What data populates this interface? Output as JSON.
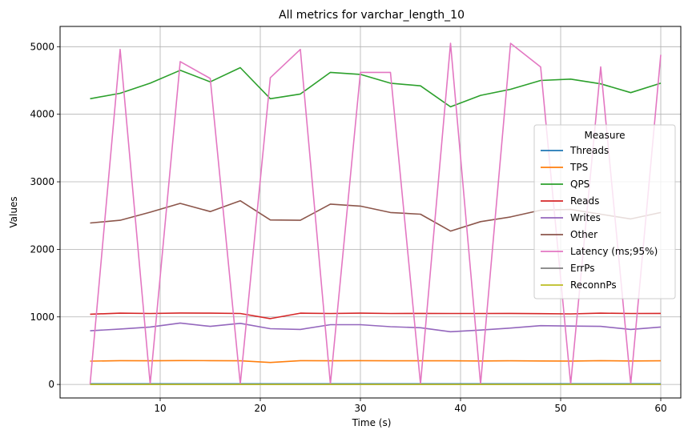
{
  "chart_data": {
    "type": "line",
    "title": "All metrics for varchar_length_10",
    "xlabel": "Time (s)",
    "ylabel": "Values",
    "xlim": [
      0,
      62
    ],
    "ylim": [
      -200,
      5300
    ],
    "xticks": [
      10,
      20,
      30,
      40,
      50,
      60
    ],
    "yticks": [
      0,
      1000,
      2000,
      3000,
      4000,
      5000
    ],
    "grid": true,
    "legend": {
      "title": "Measure",
      "placement": "center-right"
    },
    "x": [
      3,
      6,
      9,
      12,
      15,
      18,
      21,
      24,
      27,
      30,
      33,
      36,
      39,
      42,
      45,
      48,
      51,
      54,
      57,
      60
    ],
    "series": [
      {
        "name": "Threads",
        "color": "#1f77b4",
        "values": [
          10,
          10,
          10,
          10,
          10,
          10,
          10,
          10,
          10,
          10,
          10,
          10,
          10,
          10,
          10,
          10,
          10,
          10,
          10,
          10
        ]
      },
      {
        "name": "TPS",
        "color": "#ff7f0e",
        "values": [
          345,
          352,
          350,
          354,
          352,
          350,
          325,
          352,
          350,
          352,
          350,
          350,
          350,
          348,
          350,
          348,
          346,
          352,
          348,
          350
        ]
      },
      {
        "name": "QPS",
        "color": "#2ca02c",
        "values": [
          4230,
          4310,
          4460,
          4650,
          4480,
          4690,
          4230,
          4300,
          4620,
          4590,
          4460,
          4420,
          4110,
          4280,
          4370,
          4500,
          4520,
          4450,
          4320,
          4460
        ]
      },
      {
        "name": "Reads",
        "color": "#d62728",
        "values": [
          1040,
          1055,
          1050,
          1058,
          1055,
          1050,
          975,
          1055,
          1050,
          1055,
          1050,
          1052,
          1050,
          1050,
          1052,
          1048,
          1045,
          1055,
          1050,
          1052
        ]
      },
      {
        "name": "Writes",
        "color": "#9467bd",
        "values": [
          795,
          820,
          850,
          910,
          860,
          905,
          825,
          815,
          885,
          885,
          855,
          840,
          780,
          805,
          835,
          870,
          865,
          860,
          815,
          850
        ]
      },
      {
        "name": "Other",
        "color": "#8c564b",
        "values": [
          2390,
          2430,
          2550,
          2680,
          2560,
          2720,
          2435,
          2430,
          2670,
          2640,
          2545,
          2520,
          2270,
          2410,
          2480,
          2580,
          2590,
          2520,
          2450,
          2545
        ]
      },
      {
        "name": "Latency (ms;95%)",
        "color": "#e377c2",
        "values": [
          5,
          4960,
          5,
          4780,
          4530,
          5,
          4540,
          4960,
          5,
          4620,
          4620,
          5,
          5050,
          5,
          5050,
          4700,
          5,
          4700,
          5,
          4880
        ]
      },
      {
        "name": "ErrPs",
        "color": "#7f7f7f",
        "values": [
          0,
          0,
          0,
          0,
          0,
          0,
          0,
          0,
          0,
          0,
          0,
          0,
          0,
          0,
          0,
          0,
          0,
          0,
          0,
          0
        ]
      },
      {
        "name": "ReconnPs",
        "color": "#bcbd22",
        "values": [
          0,
          0,
          0,
          0,
          0,
          0,
          0,
          0,
          0,
          0,
          0,
          0,
          0,
          0,
          0,
          0,
          0,
          0,
          0,
          0
        ]
      }
    ]
  }
}
